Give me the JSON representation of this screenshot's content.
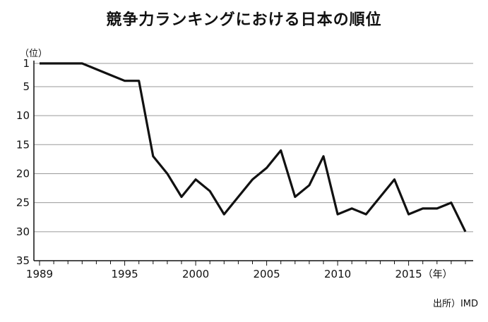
{
  "chart_data": {
    "type": "line",
    "title": "競争力ランキングにおける日本の順位",
    "y_unit_label": "（位）",
    "x_unit_label": "（年）",
    "source": "出所）IMD",
    "y_axis_inverted": true,
    "ylim": [
      1,
      35
    ],
    "y_ticks": [
      1,
      5,
      10,
      15,
      20,
      25,
      30,
      35
    ],
    "xlim": [
      1989,
      2019
    ],
    "x_ticks": [
      1989,
      1995,
      2000,
      2005,
      2010,
      2015
    ],
    "grid": "horizontal",
    "series": [
      {
        "x": [
          1989,
          1990,
          1991,
          1992,
          1993,
          1994,
          1995,
          1996,
          1997,
          1998,
          1999,
          2000,
          2001,
          2002,
          2003,
          2004,
          2005,
          2006,
          2007,
          2008,
          2009,
          2010,
          2011,
          2012,
          2013,
          2014,
          2015,
          2016,
          2017,
          2018,
          2019
        ],
        "values": [
          1,
          1,
          1,
          1,
          2,
          3,
          4,
          4,
          17,
          20,
          24,
          21,
          23,
          27,
          24,
          21,
          19,
          16,
          24,
          22,
          17,
          27,
          26,
          27,
          24,
          21,
          27,
          26,
          26,
          25,
          30
        ]
      }
    ],
    "line_color": "#111111"
  }
}
